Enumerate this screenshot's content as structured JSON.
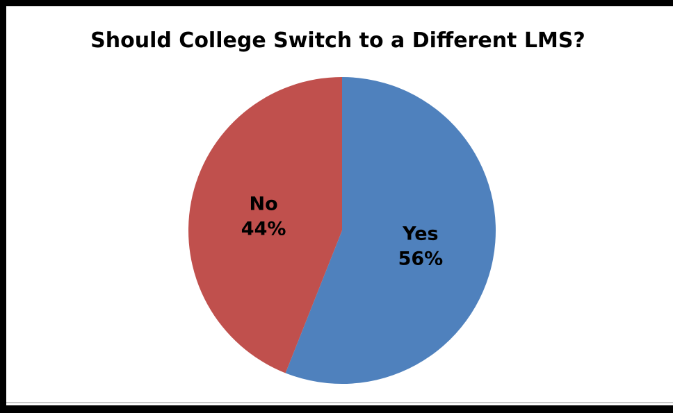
{
  "chart_data": {
    "type": "pie",
    "title": "Should College Switch to a Different LMS?",
    "slices": [
      {
        "label": "Yes",
        "percent_label": "56%",
        "value": 56,
        "color": "#4f81bd"
      },
      {
        "label": "No",
        "percent_label": "44%",
        "value": 44,
        "color": "#c0504d"
      }
    ],
    "start_angle_deg": 0,
    "direction": "clockwise",
    "legend": "none"
  }
}
